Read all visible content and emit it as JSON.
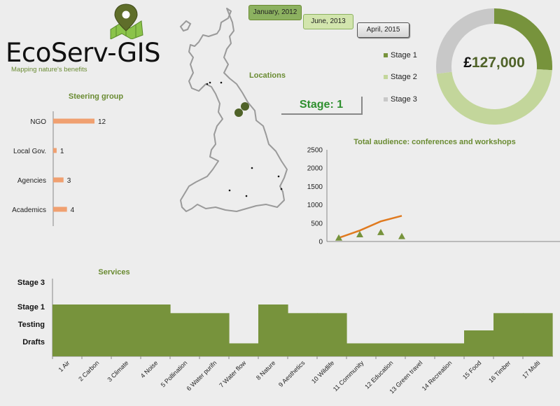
{
  "logo": {
    "name": "EcoServ-GIS",
    "tagline": "Mapping nature's benefits"
  },
  "dates": {
    "btn1": "January, 2012",
    "btn2": "June, 2013",
    "btn3": "April, 2015"
  },
  "locations": {
    "title": "Locations"
  },
  "stage": {
    "label": "Stage: 1"
  },
  "legend": [
    {
      "label": "Stage 1",
      "color": "#77933c"
    },
    {
      "label": "Stage 2",
      "color": "#c3d69b"
    },
    {
      "label": "Stage 3",
      "color": "#c8c8c8"
    }
  ],
  "budget": {
    "prefix": "£",
    "value": "127,000"
  },
  "chart_data": [
    {
      "type": "bar",
      "orientation": "horizontal",
      "title": "Steering group",
      "categories": [
        "NGO",
        "Local Gov.",
        "Agencies",
        "Academics"
      ],
      "values": [
        12,
        1,
        3,
        4
      ],
      "color": "#f0a070"
    },
    {
      "type": "line",
      "title": "Total audience: conferences and workshops",
      "ylim": [
        0,
        2500
      ],
      "yticks": [
        "0",
        "500",
        "1000",
        "1500",
        "2000",
        "2500"
      ],
      "series": [
        {
          "marker": "line",
          "color": "#e07a1f",
          "x": [
            1,
            2,
            3,
            4
          ],
          "values": [
            100,
            300,
            550,
            700
          ]
        },
        {
          "marker": "triangle",
          "color": "#77933c",
          "x": [
            1,
            2,
            3,
            4
          ],
          "values": [
            100,
            190,
            250,
            140
          ]
        }
      ],
      "xlim": [
        0.5,
        14
      ]
    },
    {
      "type": "area",
      "title": "Services",
      "levels": [
        "Drafts",
        "Testing",
        "Stage 1",
        "Stage 3"
      ],
      "categories": [
        "1 Air",
        "2 Carbon",
        "3 Climate",
        "4 Noise",
        "5 Pollination",
        "6 Water purifn",
        "7 Water flow",
        "8 Nature",
        "9 Aesthetics",
        "10 Wildlife",
        "11 Community",
        "12 Education",
        "13 Green travel",
        "14 Recreation",
        "15 Food",
        "16 Timber",
        "17 Multi"
      ],
      "values": [
        3,
        3,
        3,
        3,
        2.5,
        2.5,
        0.75,
        3,
        2.5,
        2.5,
        0.75,
        0.75,
        0.75,
        0.75,
        1.5,
        2.5,
        2.5
      ],
      "color": "#77933c"
    },
    {
      "type": "pie",
      "donut": true,
      "values": [
        26,
        47,
        27
      ],
      "labels": [
        "Stage 1",
        "Stage 2",
        "Stage 3"
      ],
      "colors": [
        "#77933c",
        "#c3d69b",
        "#c8c8c8"
      ]
    }
  ]
}
